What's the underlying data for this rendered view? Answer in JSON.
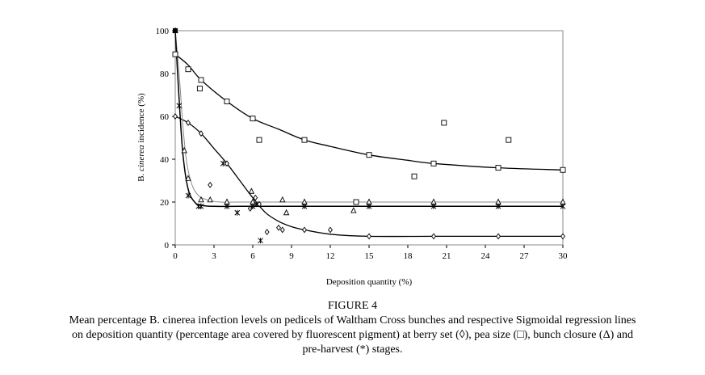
{
  "chart_data": {
    "type": "scatter",
    "title": "",
    "xlabel": "Deposition quantity (%)",
    "ylabel": {
      "prefix": "B. ",
      "italic": "cinerea",
      "suffix": " incidence (%)"
    },
    "xlim": [
      0,
      30
    ],
    "ylim": [
      0,
      100
    ],
    "xticks": [
      0,
      3,
      6,
      9,
      12,
      15,
      18,
      21,
      24,
      27,
      30
    ],
    "yticks": [
      0,
      20,
      40,
      60,
      80,
      100
    ],
    "grid": false,
    "legend": "none",
    "series": [
      {
        "marker": "diamond",
        "points": [
          [
            0,
            60
          ],
          [
            1,
            57
          ],
          [
            2,
            52
          ],
          [
            2.7,
            28
          ],
          [
            4,
            38
          ],
          [
            5.8,
            17
          ],
          [
            6.2,
            22
          ],
          [
            6.5,
            19
          ],
          [
            7.1,
            6
          ],
          [
            8.0,
            8
          ],
          [
            8.3,
            7
          ],
          [
            10,
            7
          ],
          [
            12,
            7
          ],
          [
            15,
            4
          ],
          [
            20,
            4
          ],
          [
            25,
            4
          ],
          [
            30,
            4
          ]
        ],
        "curve": [
          [
            0,
            60
          ],
          [
            1,
            57
          ],
          [
            2,
            52
          ],
          [
            3,
            45
          ],
          [
            4,
            38
          ],
          [
            5,
            30
          ],
          [
            6,
            22
          ],
          [
            7,
            15
          ],
          [
            8,
            11
          ],
          [
            9,
            8.5
          ],
          [
            10,
            7
          ],
          [
            12,
            5
          ],
          [
            15,
            4
          ],
          [
            20,
            4
          ],
          [
            25,
            4
          ],
          [
            30,
            4
          ]
        ]
      },
      {
        "marker": "square",
        "points": [
          [
            0,
            89
          ],
          [
            1,
            82
          ],
          [
            1.9,
            73
          ],
          [
            2,
            77
          ],
          [
            4,
            67
          ],
          [
            6,
            59
          ],
          [
            6.5,
            49
          ],
          [
            10,
            49
          ],
          [
            14,
            20
          ],
          [
            15,
            42
          ],
          [
            18.5,
            32
          ],
          [
            20,
            38
          ],
          [
            20.8,
            57
          ],
          [
            25,
            36
          ],
          [
            25.8,
            49
          ],
          [
            30,
            35
          ]
        ],
        "curve": [
          [
            0,
            89
          ],
          [
            1,
            84
          ],
          [
            2,
            77
          ],
          [
            4,
            67
          ],
          [
            6,
            59
          ],
          [
            8,
            54
          ],
          [
            10,
            49
          ],
          [
            12,
            46
          ],
          [
            15,
            42
          ],
          [
            18,
            39.5
          ],
          [
            20,
            38
          ],
          [
            25,
            36
          ],
          [
            30,
            35
          ]
        ]
      },
      {
        "marker": "triangle",
        "points": [
          [
            0,
            100
          ],
          [
            0.7,
            44
          ],
          [
            1,
            31
          ],
          [
            2,
            21
          ],
          [
            2.7,
            21
          ],
          [
            4,
            20
          ],
          [
            5.9,
            25
          ],
          [
            6,
            20
          ],
          [
            8.3,
            21
          ],
          [
            8.6,
            15
          ],
          [
            10,
            20
          ],
          [
            13.8,
            16
          ],
          [
            15,
            20
          ],
          [
            20,
            20
          ],
          [
            25,
            20
          ],
          [
            30,
            20
          ]
        ],
        "curve": [
          [
            0,
            100
          ],
          [
            0.3,
            80
          ],
          [
            0.6,
            55
          ],
          [
            0.9,
            38
          ],
          [
            1.3,
            28
          ],
          [
            1.8,
            23
          ],
          [
            2.5,
            21
          ],
          [
            3.5,
            20
          ],
          [
            5,
            20
          ],
          [
            10,
            20
          ],
          [
            20,
            20
          ],
          [
            30,
            20
          ]
        ]
      },
      {
        "marker": "star",
        "points": [
          [
            0,
            100
          ],
          [
            0.3,
            65
          ],
          [
            1,
            23
          ],
          [
            1.8,
            18
          ],
          [
            2,
            18
          ],
          [
            3.7,
            38
          ],
          [
            4,
            18
          ],
          [
            4.8,
            15
          ],
          [
            6,
            18
          ],
          [
            6.3,
            19
          ],
          [
            6.6,
            2
          ],
          [
            10,
            18
          ],
          [
            15,
            18
          ],
          [
            20,
            18
          ],
          [
            25,
            18
          ],
          [
            30,
            18
          ]
        ],
        "curve": [
          [
            0,
            100
          ],
          [
            0.3,
            68
          ],
          [
            0.6,
            42
          ],
          [
            1.0,
            26
          ],
          [
            1.5,
            20
          ],
          [
            2,
            18.5
          ],
          [
            3,
            18
          ],
          [
            5,
            18
          ],
          [
            10,
            18
          ],
          [
            20,
            18
          ],
          [
            30,
            18
          ]
        ]
      }
    ]
  },
  "figure": {
    "title": "FIGURE 4",
    "caption_lines": [
      "Mean percentage B. cinerea infection levels on pedicels of Waltham Cross bunches and respective Sigmoidal regression lines",
      "on deposition quantity (percentage area covered by fluorescent pigment) at berry set (◊), pea size (□), bunch closure (Δ) and",
      "pre-harvest (*) stages."
    ]
  }
}
